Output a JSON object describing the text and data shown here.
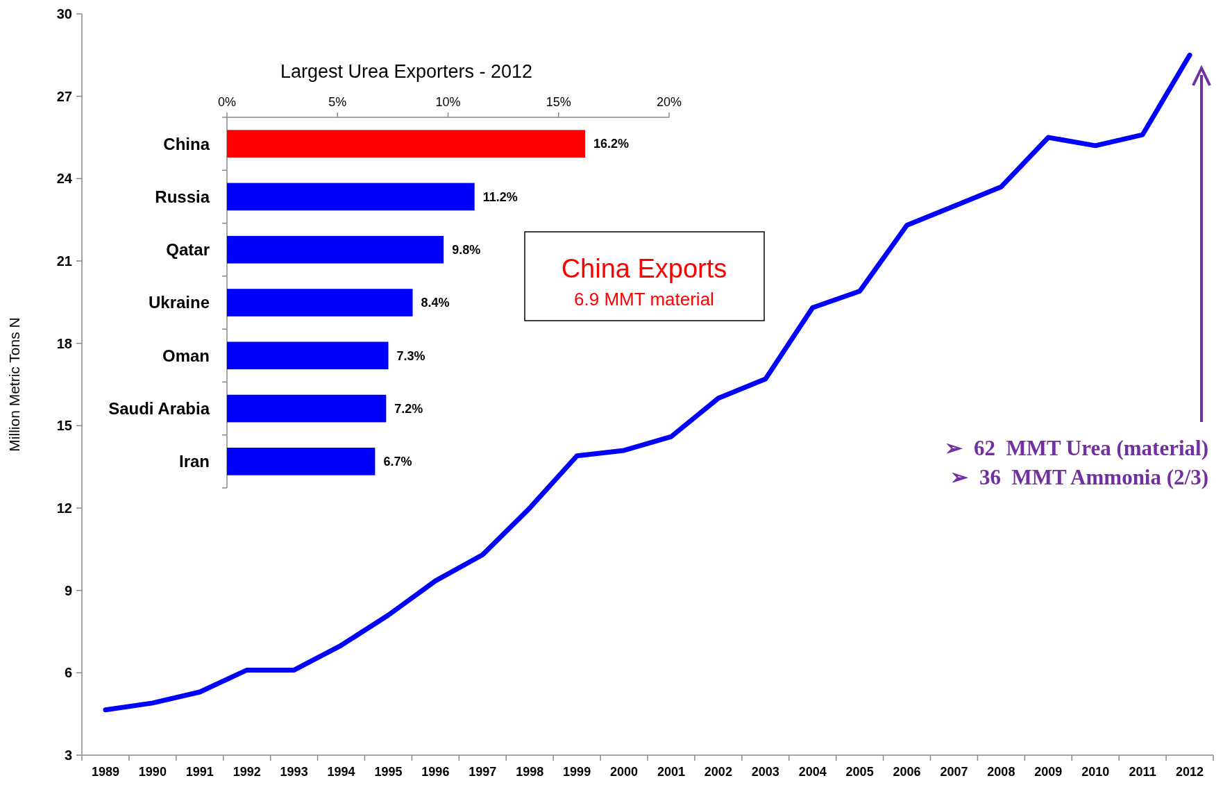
{
  "chart_data": [
    {
      "type": "line",
      "ylabel": "Million Metric Tons N",
      "categories": [
        "1989",
        "1990",
        "1991",
        "1992",
        "1993",
        "1994",
        "1995",
        "1996",
        "1997",
        "1998",
        "1999",
        "2000",
        "2001",
        "2002",
        "2003",
        "2004",
        "2005",
        "2006",
        "2007",
        "2008",
        "2009",
        "2010",
        "2011",
        "2012"
      ],
      "series": [
        {
          "color": "#0000ff",
          "values": [
            4.65,
            4.9,
            5.3,
            6.1,
            6.1,
            7.0,
            8.1,
            9.35,
            10.3,
            12.0,
            13.9,
            14.1,
            14.6,
            16.0,
            16.7,
            19.3,
            19.9,
            22.3,
            23.0,
            23.7,
            25.5,
            25.2,
            25.6,
            28.5
          ]
        }
      ],
      "ylim": [
        3,
        30
      ],
      "yticks": [
        3,
        6,
        9,
        12,
        15,
        18,
        21,
        24,
        27,
        30
      ],
      "grid": false,
      "marker": "none",
      "line_style": "solid",
      "annotations": [
        "China Exports",
        "6.9 MMT material",
        "➢  62  MMT Urea (material)",
        "➢  36  MMT Ammonia (2/3)"
      ]
    },
    {
      "type": "bar",
      "orientation": "horizontal",
      "title": "Largest Urea Exporters - 2012",
      "categories": [
        "China",
        "Russia",
        "Qatar",
        "Ukraine",
        "Oman",
        "Saudi Arabia",
        "Iran"
      ],
      "values": [
        16.2,
        11.2,
        9.8,
        8.4,
        7.3,
        7.2,
        6.7
      ],
      "colors": [
        "#ff0000",
        "#0000ff",
        "#0000ff",
        "#0000ff",
        "#0000ff",
        "#0000ff",
        "#0000ff"
      ],
      "value_labels": [
        "16.2%",
        "11.2%",
        "9.8%",
        "8.4%",
        "7.3%",
        "7.2%",
        "6.7%"
      ],
      "xlim": [
        0,
        20
      ],
      "xticks": [
        {
          "value": 0,
          "label": "0%"
        },
        {
          "value": 5,
          "label": "5%"
        },
        {
          "value": 10,
          "label": "10%"
        },
        {
          "value": 15,
          "label": "15%"
        },
        {
          "value": 20,
          "label": "20%"
        }
      ],
      "grid": false
    }
  ]
}
